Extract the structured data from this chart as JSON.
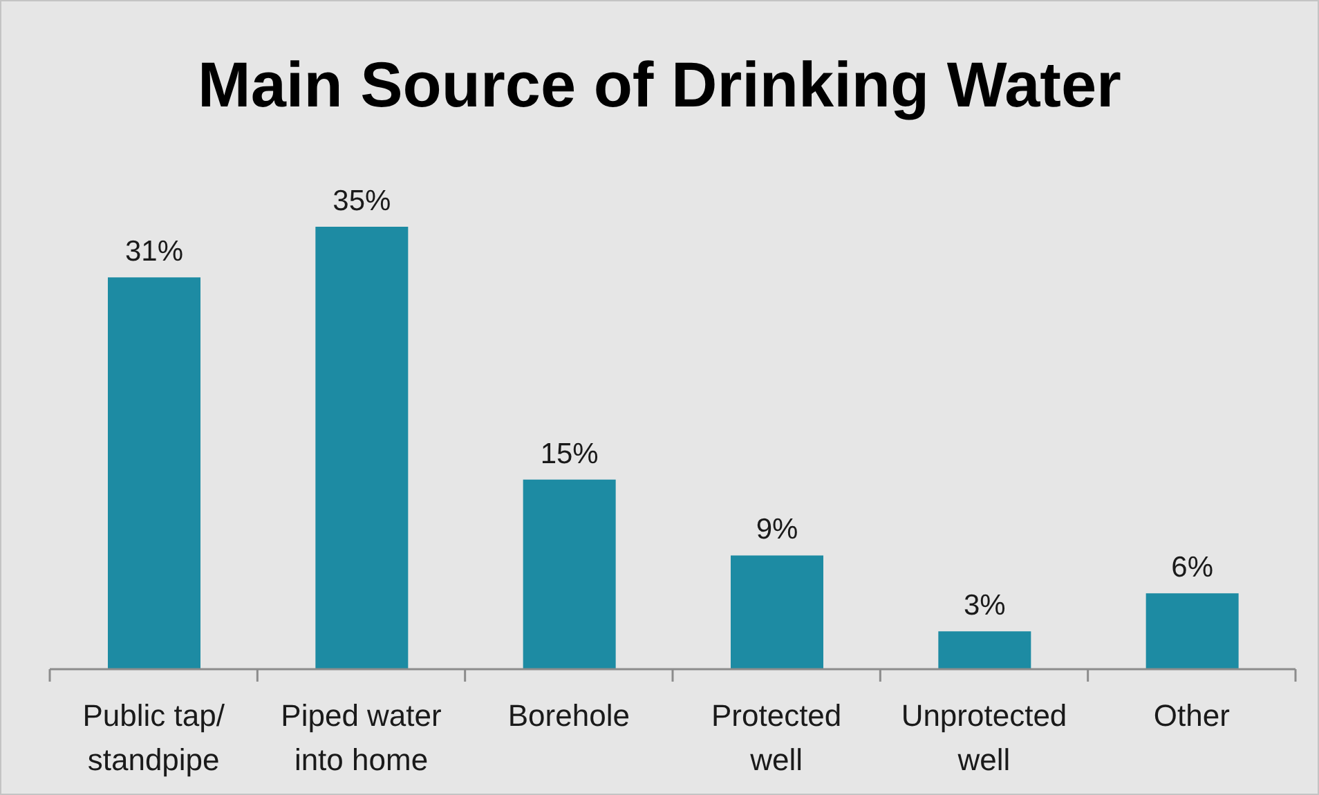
{
  "chart_data": {
    "type": "bar",
    "title": "Main Source of Drinking Water",
    "categories": [
      "Public tap/ standpipe",
      "Piped water into home",
      "Borehole",
      "Protected well",
      "Unprotected well",
      "Other"
    ],
    "values": [
      31,
      35,
      15,
      9,
      3,
      6
    ],
    "value_labels": [
      "31%",
      "35%",
      "15%",
      "9%",
      "3%",
      "6%"
    ],
    "color": "#1d8ba3",
    "tick_labels": "x"
  }
}
